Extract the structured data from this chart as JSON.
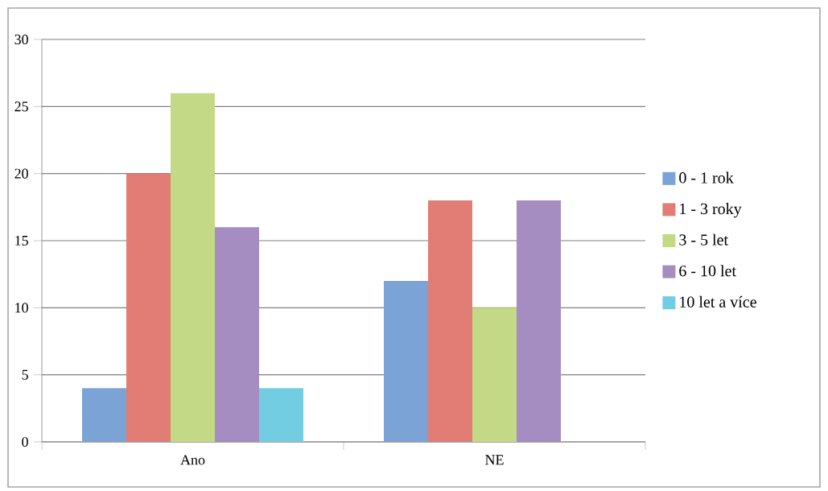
{
  "chart_data": {
    "type": "bar",
    "categories": [
      "Ano",
      "NE"
    ],
    "series": [
      {
        "name": "0 - 1 rok",
        "color": "#7ba3d6",
        "values": [
          4,
          12
        ]
      },
      {
        "name": "1 - 3 roky",
        "color": "#e27d75",
        "values": [
          20,
          18
        ]
      },
      {
        "name": "3 - 5 let",
        "color": "#c3d985",
        "values": [
          26,
          10
        ]
      },
      {
        "name": "6 - 10 let",
        "color": "#a58dc2",
        "values": [
          16,
          18
        ]
      },
      {
        "name": "10 let a více",
        "color": "#72cde2",
        "values": [
          4,
          null
        ]
      }
    ],
    "ylim": [
      0,
      30
    ],
    "yticks": [
      0,
      5,
      10,
      15,
      20,
      25,
      30
    ],
    "grid": "y",
    "legend": "right"
  }
}
